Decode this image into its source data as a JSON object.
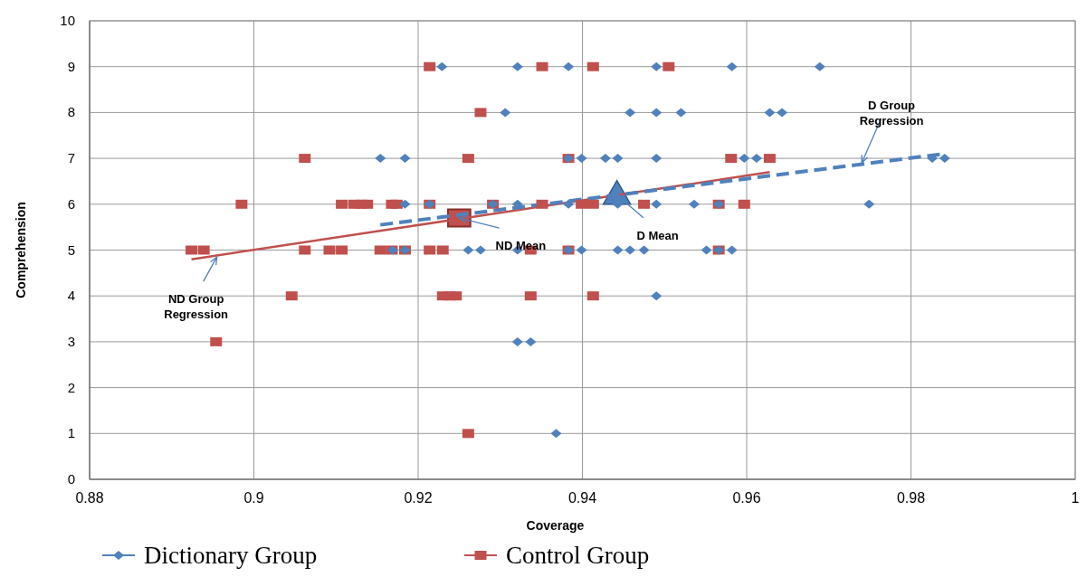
{
  "chart_data": {
    "type": "scatter",
    "xlabel": "Coverage",
    "ylabel": "Comprehension",
    "xlim": [
      0.88,
      1
    ],
    "xticks": [
      0.88,
      0.9,
      0.92,
      0.94,
      0.96,
      0.98,
      1
    ],
    "ylim": [
      0,
      10
    ],
    "yticks": [
      0,
      1,
      2,
      3,
      4,
      5,
      6,
      7,
      8,
      9,
      10
    ],
    "grid": true,
    "legend": "bottom",
    "series": [
      {
        "name": "Dictionary Group",
        "color": "#4f81bd",
        "marker": "diamond",
        "x": [
          0.9229,
          0.9321,
          0.9383,
          0.949,
          0.9582,
          0.9689,
          0.9306,
          0.9458,
          0.949,
          0.952,
          0.9628,
          0.9643,
          0.9154,
          0.9184,
          0.9383,
          0.9399,
          0.9428,
          0.9443,
          0.949,
          0.9597,
          0.9612,
          0.9826,
          0.9841,
          0.9184,
          0.9214,
          0.9291,
          0.9321,
          0.9383,
          0.9443,
          0.949,
          0.9536,
          0.9566,
          0.9749,
          0.9169,
          0.9184,
          0.9261,
          0.9276,
          0.9321,
          0.9383,
          0.9399,
          0.9443,
          0.9458,
          0.9475,
          0.9551,
          0.9566,
          0.9582,
          0.949,
          0.9321,
          0.9337,
          0.9368
        ],
        "values": [
          9,
          9,
          9,
          9,
          9,
          9,
          8,
          8,
          8,
          8,
          8,
          8,
          7,
          7,
          7,
          7,
          7,
          7,
          7,
          7,
          7,
          7,
          7,
          6,
          6,
          6,
          6,
          6,
          6,
          6,
          6,
          6,
          6,
          5,
          5,
          5,
          5,
          5,
          5,
          5,
          5,
          5,
          5,
          5,
          5,
          5,
          4,
          3,
          3,
          1
        ]
      },
      {
        "name": "Control Group",
        "color": "#c0504d",
        "marker": "square",
        "x": [
          0.9214,
          0.9351,
          0.9413,
          0.9505,
          0.9276,
          0.9062,
          0.9261,
          0.9383,
          0.9581,
          0.9628,
          0.8985,
          0.9107,
          0.9122,
          0.9131,
          0.9138,
          0.9168,
          0.9174,
          0.9214,
          0.9291,
          0.9351,
          0.9399,
          0.9413,
          0.9475,
          0.9566,
          0.9597,
          0.8924,
          0.8939,
          0.9062,
          0.9092,
          0.9107,
          0.9154,
          0.9168,
          0.9184,
          0.9214,
          0.923,
          0.9337,
          0.9383,
          0.9566,
          0.9046,
          0.923,
          0.9239,
          0.9246,
          0.9337,
          0.9413,
          0.8954,
          0.9261
        ],
        "values": [
          9,
          9,
          9,
          9,
          8,
          7,
          7,
          7,
          7,
          7,
          6,
          6,
          6,
          6,
          6,
          6,
          6,
          6,
          6,
          6,
          6,
          6,
          6,
          6,
          6,
          5,
          5,
          5,
          5,
          5,
          5,
          5,
          5,
          5,
          5,
          5,
          5,
          5,
          4,
          4,
          4,
          4,
          4,
          4,
          3,
          1
        ]
      },
      {
        "type": "line",
        "color": "#4f81bd",
        "marker": "none",
        "line_style": "dashed",
        "x": [
          0.9154,
          0.9841
        ],
        "values": [
          5.55,
          7.1
        ]
      },
      {
        "type": "line",
        "color": "#c0504d",
        "marker": "none",
        "line_style": "solid",
        "x": [
          0.8924,
          0.9628
        ],
        "values": [
          4.8,
          6.7
        ]
      },
      {
        "color": "#c0504d",
        "marker": "square",
        "x": [
          0.925
        ],
        "values": [
          5.7
        ]
      },
      {
        "color": "#4f81bd",
        "marker": "triangle",
        "x": [
          0.9442
        ],
        "values": [
          6.2
        ]
      }
    ],
    "annotations": [
      {
        "text": "ND Group Regression",
        "x": 0.8955,
        "y": 4.85
      },
      {
        "text": "D Group Regression",
        "x": 0.974,
        "y": 6.9
      },
      {
        "text": "ND Mean",
        "x": 0.925,
        "y": 5.7
      },
      {
        "text": "D Mean",
        "x": 0.9442,
        "y": 6.2
      }
    ]
  }
}
